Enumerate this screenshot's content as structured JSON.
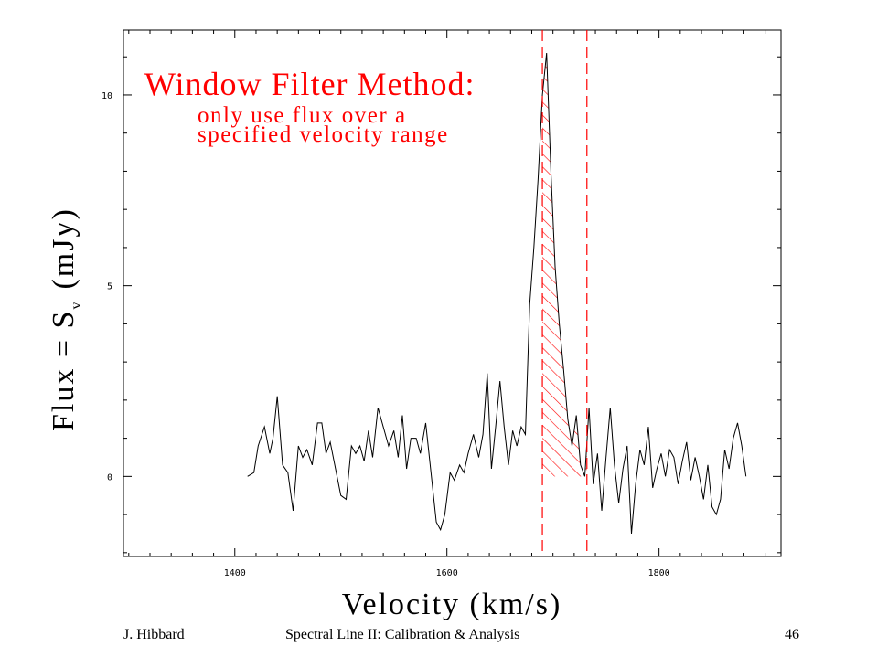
{
  "chart_data": {
    "type": "line",
    "title": "",
    "xlabel": "Velocity (km/s)",
    "ylabel_main": "Flux = S",
    "ylabel_sub": "v",
    "ylabel_units": "(mJy)",
    "xlim": [
      1295,
      1915
    ],
    "ylim": [
      -2.1,
      11.7
    ],
    "x_ticks": [
      1400,
      1600,
      1800
    ],
    "y_ticks": [
      0,
      5,
      10
    ],
    "x_tick_labels": [
      "1400",
      "1600",
      "1800"
    ],
    "y_tick_labels": [
      "0",
      "5",
      "10"
    ],
    "grid": false,
    "series": [
      {
        "color": "#000000",
        "x": [
          1412,
          1418,
          1422,
          1428,
          1433,
          1436,
          1440,
          1445,
          1450,
          1455,
          1460,
          1464,
          1468,
          1473,
          1478,
          1482,
          1486,
          1490,
          1495,
          1500,
          1505,
          1510,
          1514,
          1518,
          1522,
          1526,
          1530,
          1535,
          1540,
          1545,
          1550,
          1554,
          1558,
          1562,
          1566,
          1571,
          1575,
          1580,
          1585,
          1590,
          1594,
          1598,
          1603,
          1607,
          1612,
          1616,
          1620,
          1625,
          1630,
          1634,
          1638,
          1642,
          1646,
          1650,
          1654,
          1658,
          1662,
          1666,
          1670,
          1674,
          1678,
          1682,
          1686,
          1690,
          1694,
          1698,
          1702,
          1706,
          1710,
          1714,
          1718,
          1722,
          1726,
          1730,
          1734,
          1738,
          1742,
          1746,
          1750,
          1754,
          1758,
          1762,
          1766,
          1770,
          1774,
          1778,
          1782,
          1786,
          1790,
          1794,
          1798,
          1802,
          1806,
          1810,
          1814,
          1818,
          1822,
          1826,
          1830,
          1834,
          1838,
          1842,
          1846,
          1850,
          1854,
          1858,
          1862,
          1866,
          1870,
          1874,
          1878,
          1882
        ],
        "y": [
          0.0,
          0.1,
          0.8,
          1.3,
          0.6,
          1.0,
          2.1,
          0.3,
          0.1,
          -0.9,
          0.8,
          0.5,
          0.7,
          0.3,
          1.4,
          1.4,
          0.6,
          0.9,
          0.2,
          -0.5,
          -0.6,
          0.8,
          0.6,
          0.8,
          0.4,
          1.2,
          0.5,
          1.8,
          1.3,
          0.8,
          1.2,
          0.5,
          1.6,
          0.2,
          1.0,
          1.0,
          0.6,
          1.4,
          0.1,
          -1.2,
          -1.4,
          -1.0,
          0.1,
          -0.1,
          0.3,
          0.1,
          0.6,
          1.1,
          0.5,
          1.1,
          2.7,
          0.2,
          1.3,
          2.5,
          1.3,
          0.3,
          1.2,
          0.8,
          1.3,
          1.1,
          4.5,
          6.0,
          7.8,
          10.0,
          11.1,
          8.0,
          5.5,
          4.0,
          2.8,
          1.5,
          0.8,
          1.6,
          0.3,
          0.0,
          1.8,
          -0.2,
          0.6,
          -0.9,
          0.5,
          1.8,
          0.3,
          -0.7,
          0.2,
          0.8,
          -1.5,
          -0.2,
          0.7,
          0.3,
          1.3,
          -0.3,
          0.2,
          0.6,
          0.0,
          0.7,
          0.5,
          -0.2,
          0.4,
          0.9,
          -0.1,
          0.5,
          0.0,
          -0.6,
          0.3,
          -0.8,
          -1.0,
          -0.6,
          0.7,
          0.2,
          1.0,
          1.4,
          0.8,
          0.0
        ]
      }
    ],
    "shaded_region": {
      "x": [
        1690,
        1732
      ],
      "color": "#ff0000",
      "fill": "hatched"
    },
    "vlines": [
      {
        "x": 1690,
        "color": "#ff0000",
        "style": "dashed"
      },
      {
        "x": 1732,
        "color": "#ff0000",
        "style": "dashed"
      }
    ],
    "annotations": [
      {
        "text": "Window Filter Method:",
        "color": "#ff0000"
      },
      {
        "text": "only use flux over a",
        "color": "#ff0000"
      },
      {
        "text": "specified velocity range",
        "color": "#ff0000"
      }
    ]
  },
  "footer": {
    "author": "J. Hibbard",
    "title": "Spectral Line II: Calibration & Analysis",
    "page": "46"
  }
}
